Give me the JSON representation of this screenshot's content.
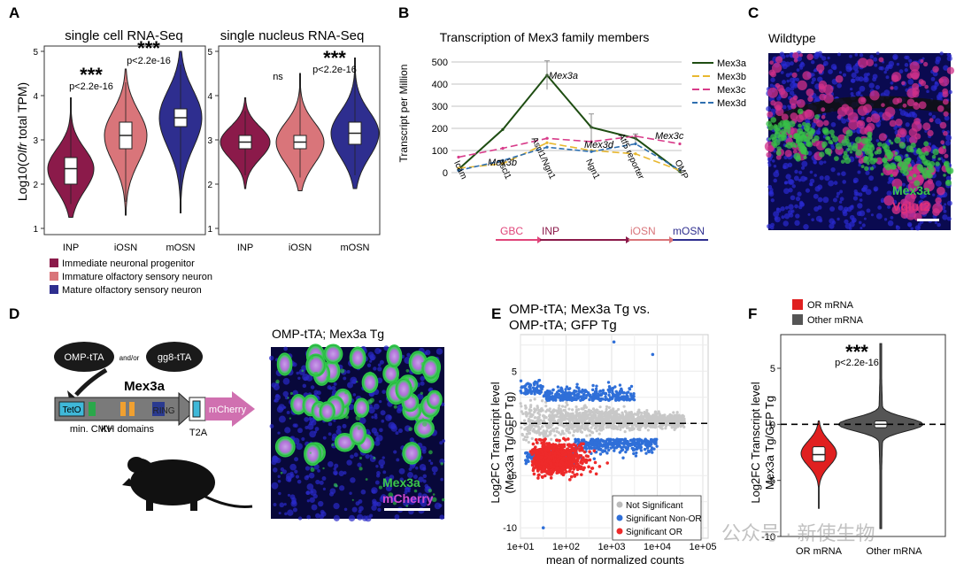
{
  "figure": {
    "panel_letters": [
      "A",
      "B",
      "C",
      "D",
      "E",
      "F"
    ],
    "watermark": "公众号 · 新使生物"
  },
  "panelA": {
    "left_title": "single cell RNA-Seq",
    "right_title": "single nucleus RNA-Seq",
    "ylabel_prefix": "Log10(",
    "ylabel_italic": "Olfr",
    "ylabel_suffix": " total TPM)",
    "yticks": [
      "1",
      "2",
      "3",
      "4",
      "5"
    ],
    "categories": [
      "INP",
      "iOSN",
      "mOSN"
    ],
    "sig_stars": "***",
    "sig_p": "p<2.2e-16",
    "sig_ns": "ns",
    "legend": [
      {
        "label": "Immediate neuronal progenitor",
        "color": "#8B1A4A"
      },
      {
        "label": "Immature olfactory sensory neuron",
        "color": "#D9757A"
      },
      {
        "label": "Mature olfactory sensory neuron",
        "color": "#2E2E8F"
      }
    ]
  },
  "chart_data": [
    {
      "type": "violin",
      "title": "single cell RNA-Seq",
      "ylabel": "Log10(Olfr total TPM)",
      "ylim": [
        1,
        5
      ],
      "categories": [
        "INP",
        "iOSN",
        "mOSN"
      ],
      "medians": [
        2.35,
        3.1,
        3.5
      ],
      "q1": [
        2.0,
        2.8,
        3.3
      ],
      "q3": [
        2.6,
        3.4,
        3.7
      ],
      "annotations": [
        {
          "between": "INP-iOSN",
          "text": "*** p<2.2e-16"
        },
        {
          "between": "iOSN-mOSN",
          "text": "*** p<2.2e-16"
        }
      ]
    },
    {
      "type": "violin",
      "title": "single nucleus RNA-Seq",
      "ylim": [
        1,
        5
      ],
      "categories": [
        "INP",
        "iOSN",
        "mOSN"
      ],
      "medians": [
        2.95,
        2.95,
        3.15
      ],
      "q1": [
        2.8,
        2.8,
        2.9
      ],
      "q3": [
        3.1,
        3.1,
        3.4
      ],
      "annotations": [
        {
          "between": "INP-iOSN",
          "text": "ns"
        },
        {
          "between": "iOSN-mOSN",
          "text": "*** p<2.2e-16"
        }
      ]
    },
    {
      "type": "line",
      "title": "Transcription of Mex3 family members",
      "ylabel": "Transcript per Million",
      "ylim": [
        0,
        500
      ],
      "yticks": [
        0,
        100,
        200,
        300,
        400,
        500
      ],
      "categories": [
        "Icam",
        "Ascl1",
        "Ascl1/Ngn1",
        "Ngn1",
        "Atf5 reporter",
        "OMP"
      ],
      "series": [
        {
          "name": "Mex3a",
          "color": "#1E4D12",
          "dash": "",
          "values": [
            15,
            195,
            440,
            205,
            155,
            5
          ]
        },
        {
          "name": "Mex3b",
          "color": "#E8B830",
          "dash": "8 4",
          "values": [
            20,
            40,
            135,
            100,
            85,
            10
          ]
        },
        {
          "name": "Mex3c",
          "color": "#D83C8A",
          "dash": "8 4",
          "values": [
            70,
            110,
            155,
            140,
            165,
            130
          ]
        },
        {
          "name": "Mex3d",
          "color": "#2E6FB0",
          "dash": "6 3",
          "values": [
            10,
            55,
            115,
            95,
            130,
            12
          ]
        }
      ],
      "labels": [
        "Mex3a",
        "Mex3b",
        "Mex3c",
        "Mex3d"
      ]
    },
    {
      "type": "scatter",
      "title": "OMP-tTA; Mex3a Tg vs. OMP-tTA; GFP Tg",
      "xlabel": "mean of normalized counts",
      "ylabel": "Log2FC Transcript level (Mex3a Tg/GFP Tg)",
      "xscale": "log",
      "xlim": [
        10,
        100000
      ],
      "ylim": [
        -11,
        8.5
      ],
      "xticks": [
        "1e+01",
        "1e+02",
        "1e+03",
        "1e+04",
        "1e+05"
      ],
      "yticks": [
        "-10",
        "-5",
        "0",
        "5"
      ],
      "legend": [
        "Not Significant",
        "Significant Non-OR",
        "Significant OR"
      ]
    },
    {
      "type": "violin",
      "ylabel": "Log2FC Transcript level Mex3a Tg/GFP Tg",
      "ylim": [
        -10,
        8
      ],
      "categories": [
        "OR mRNA",
        "Other mRNA"
      ],
      "medians": [
        -2.7,
        0.0
      ],
      "q1": [
        -3.3,
        -0.3
      ],
      "q3": [
        -2.0,
        0.3
      ],
      "legend": [
        {
          "label": "OR mRNA",
          "color": "#E02020"
        },
        {
          "label": "Other mRNA",
          "color": "#555555"
        }
      ],
      "annotations": [
        {
          "text": "*** p<2.2e-16"
        }
      ]
    }
  ],
  "panelB": {
    "title": "Transcription of Mex3 family members",
    "ylabel": "Transcript per Million",
    "lineage": [
      {
        "label": "GBC",
        "color": "#E0457A"
      },
      {
        "label": "INP",
        "color": "#8B1A4A"
      },
      {
        "label": "iOSN",
        "color": "#D9757A"
      },
      {
        "label": "mOSN",
        "color": "#2E2E8F"
      }
    ]
  },
  "panelC": {
    "title": "Wildtype",
    "stain1": "Mex3a",
    "stain2": "Vglut2"
  },
  "panelD": {
    "driver1": "OMP-tTA",
    "and_or": "and/or",
    "driver2": "gg8-tTA",
    "transgene": "Mex3a",
    "tetO": "TetO",
    "ring": "RING",
    "mcherry": "mCherry",
    "min_cmv": "min. CMV",
    "kh": "KH domains",
    "t2a": "T2A",
    "image_title": "OMP-tTA; Mex3a Tg",
    "stain1": "Mex3a",
    "stain2": "mCherry"
  },
  "panelE": {
    "title_line1": "OMP-tTA; Mex3a Tg vs.",
    "title_line2": "OMP-tTA; GFP Tg",
    "ylabel_line1": "Log2FC Transcript level",
    "ylabel_line2": "(Mex3a Tg/GFP Tg)",
    "xlabel": "mean of normalized counts",
    "xticks": [
      "1e+01",
      "1e+02",
      "1e+03",
      "1e+04",
      "1e+05"
    ],
    "yticks": [
      "-10",
      "-5",
      "0",
      "5"
    ],
    "legend": [
      {
        "label": "Not Significant",
        "color": "#BBBBBB"
      },
      {
        "label": "Significant Non-OR",
        "color": "#2F6FD8"
      },
      {
        "label": "Significant OR",
        "color": "#EE2A2A"
      }
    ]
  },
  "panelF": {
    "ylabel_line1": "Log2FC Transcript level",
    "ylabel_line2": "Mex3a Tg/GFP Tg",
    "yticks": [
      "-10",
      "-5",
      "0",
      "5"
    ],
    "categories": [
      "OR mRNA",
      "Other mRNA"
    ],
    "stars": "***",
    "p": "p<2.2e-16",
    "legend": [
      {
        "label": "OR mRNA",
        "color": "#E02020"
      },
      {
        "label": "Other mRNA",
        "color": "#555555"
      }
    ]
  }
}
